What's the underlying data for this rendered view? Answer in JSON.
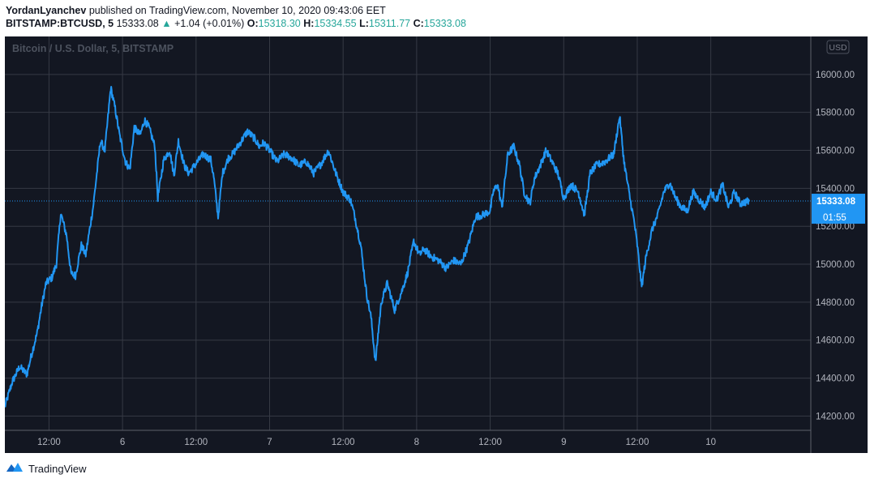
{
  "header": {
    "author": "YordanLyanchev",
    "published_text": "published on TradingView.com, November 10, 2020 09:43:06 EET"
  },
  "quote": {
    "symbol": "BITSTAMP:BTCUSD, 5",
    "last": "15333.08",
    "change": "+1.04 (+0.01%)",
    "o_label": "O:",
    "o": "15318.30",
    "h_label": "H:",
    "h": "15334.55",
    "l_label": "L:",
    "l": "15311.77",
    "c_label": "C:",
    "c": "15333.08",
    "up_color": "#26a69a"
  },
  "chart_data": {
    "type": "line",
    "title": "Bitcoin / U.S. Dollar, 5, BITSTAMP",
    "currency_label": "USD",
    "line_color": "#2196f3",
    "background": "#131722",
    "grid": true,
    "ylim": [
      14125,
      16200
    ],
    "y_ticks": [
      "14200.00",
      "14400.00",
      "14600.00",
      "14800.00",
      "15000.00",
      "15200.00",
      "15400.00",
      "15600.00",
      "15800.00",
      "16000.00"
    ],
    "x_range_days": [
      5.2,
      10.68
    ],
    "x_ticks": [
      {
        "label": "12:00",
        "day": 5.5
      },
      {
        "label": "6",
        "day": 6.0
      },
      {
        "label": "12:00",
        "day": 6.5
      },
      {
        "label": "7",
        "day": 7.0
      },
      {
        "label": "12:00",
        "day": 7.5
      },
      {
        "label": "8",
        "day": 8.0
      },
      {
        "label": "12:00",
        "day": 8.5
      },
      {
        "label": "9",
        "day": 9.0
      },
      {
        "label": "12:00",
        "day": 9.5
      },
      {
        "label": "10",
        "day": 10.0
      }
    ],
    "last_price": {
      "value": 15333.08,
      "label": "15333.08",
      "countdown": "01:55"
    },
    "series": [
      {
        "values": [
          [
            5.2,
            14250
          ],
          [
            5.25,
            14380
          ],
          [
            5.3,
            14460
          ],
          [
            5.35,
            14420
          ],
          [
            5.38,
            14520
          ],
          [
            5.42,
            14640
          ],
          [
            5.45,
            14780
          ],
          [
            5.48,
            14900
          ],
          [
            5.52,
            14930
          ],
          [
            5.55,
            15000
          ],
          [
            5.58,
            15270
          ],
          [
            5.62,
            15150
          ],
          [
            5.65,
            14950
          ],
          [
            5.68,
            14940
          ],
          [
            5.72,
            15100
          ],
          [
            5.75,
            15050
          ],
          [
            5.8,
            15300
          ],
          [
            5.85,
            15650
          ],
          [
            5.88,
            15600
          ],
          [
            5.92,
            15930
          ],
          [
            5.95,
            15820
          ],
          [
            5.98,
            15680
          ],
          [
            6.02,
            15540
          ],
          [
            6.05,
            15500
          ],
          [
            6.08,
            15720
          ],
          [
            6.12,
            15680
          ],
          [
            6.15,
            15760
          ],
          [
            6.18,
            15720
          ],
          [
            6.22,
            15620
          ],
          [
            6.24,
            15350
          ],
          [
            6.28,
            15550
          ],
          [
            6.32,
            15600
          ],
          [
            6.35,
            15470
          ],
          [
            6.38,
            15650
          ],
          [
            6.42,
            15520
          ],
          [
            6.45,
            15480
          ],
          [
            6.5,
            15530
          ],
          [
            6.55,
            15580
          ],
          [
            6.6,
            15550
          ],
          [
            6.62,
            15460
          ],
          [
            6.65,
            15250
          ],
          [
            6.68,
            15480
          ],
          [
            6.72,
            15560
          ],
          [
            6.75,
            15580
          ],
          [
            6.8,
            15640
          ],
          [
            6.85,
            15700
          ],
          [
            6.9,
            15660
          ],
          [
            6.93,
            15620
          ],
          [
            6.96,
            15640
          ],
          [
            7.0,
            15600
          ],
          [
            7.05,
            15540
          ],
          [
            7.1,
            15580
          ],
          [
            7.15,
            15560
          ],
          [
            7.2,
            15520
          ],
          [
            7.25,
            15540
          ],
          [
            7.3,
            15480
          ],
          [
            7.35,
            15530
          ],
          [
            7.4,
            15600
          ],
          [
            7.45,
            15480
          ],
          [
            7.5,
            15380
          ],
          [
            7.55,
            15340
          ],
          [
            7.58,
            15250
          ],
          [
            7.62,
            15100
          ],
          [
            7.66,
            14840
          ],
          [
            7.69,
            14720
          ],
          [
            7.72,
            14480
          ],
          [
            7.74,
            14650
          ],
          [
            7.76,
            14800
          ],
          [
            7.8,
            14900
          ],
          [
            7.85,
            14760
          ],
          [
            7.9,
            14860
          ],
          [
            7.94,
            14960
          ],
          [
            7.98,
            15120
          ],
          [
            8.02,
            15050
          ],
          [
            8.05,
            15080
          ],
          [
            8.1,
            15040
          ],
          [
            8.15,
            15020
          ],
          [
            8.2,
            14980
          ],
          [
            8.25,
            15020
          ],
          [
            8.3,
            15000
          ],
          [
            8.35,
            15100
          ],
          [
            8.4,
            15250
          ],
          [
            8.45,
            15260
          ],
          [
            8.5,
            15280
          ],
          [
            8.52,
            15380
          ],
          [
            8.55,
            15420
          ],
          [
            8.58,
            15300
          ],
          [
            8.62,
            15580
          ],
          [
            8.66,
            15620
          ],
          [
            8.7,
            15520
          ],
          [
            8.73,
            15380
          ],
          [
            8.77,
            15320
          ],
          [
            8.8,
            15450
          ],
          [
            8.84,
            15520
          ],
          [
            8.88,
            15600
          ],
          [
            8.92,
            15540
          ],
          [
            8.96,
            15480
          ],
          [
            9.0,
            15350
          ],
          [
            9.05,
            15420
          ],
          [
            9.1,
            15380
          ],
          [
            9.14,
            15260
          ],
          [
            9.18,
            15480
          ],
          [
            9.22,
            15520
          ],
          [
            9.28,
            15540
          ],
          [
            9.34,
            15580
          ],
          [
            9.38,
            15780
          ],
          [
            9.41,
            15540
          ],
          [
            9.45,
            15350
          ],
          [
            9.48,
            15220
          ],
          [
            9.5,
            15100
          ],
          [
            9.53,
            14880
          ],
          [
            9.56,
            15040
          ],
          [
            9.6,
            15180
          ],
          [
            9.64,
            15260
          ],
          [
            9.68,
            15380
          ],
          [
            9.72,
            15430
          ],
          [
            9.76,
            15350
          ],
          [
            9.8,
            15300
          ],
          [
            9.84,
            15280
          ],
          [
            9.88,
            15380
          ],
          [
            9.92,
            15340
          ],
          [
            9.96,
            15300
          ],
          [
            10.0,
            15380
          ],
          [
            10.04,
            15340
          ],
          [
            10.08,
            15420
          ],
          [
            10.12,
            15300
          ],
          [
            10.16,
            15380
          ],
          [
            10.2,
            15320
          ],
          [
            10.26,
            15333
          ]
        ]
      }
    ]
  },
  "footer": {
    "brand": "TradingView",
    "logo_icon": "tradingview-logo-icon"
  }
}
